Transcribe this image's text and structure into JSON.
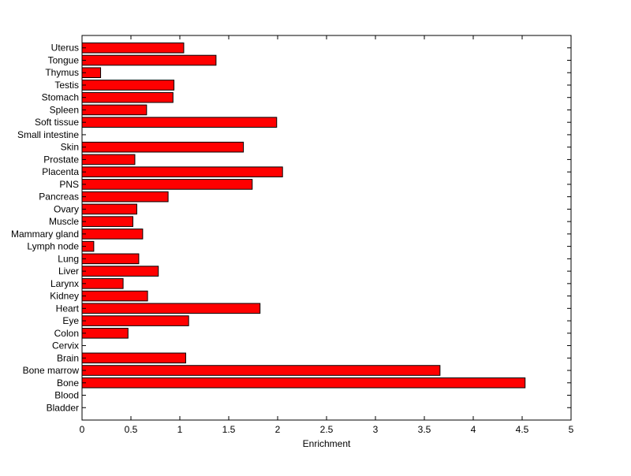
{
  "chart_data": {
    "type": "bar",
    "orientation": "horizontal",
    "title": "",
    "xlabel": "Enrichment",
    "ylabel": "",
    "xlim": [
      0,
      5
    ],
    "xticks": [
      0,
      0.5,
      1,
      1.5,
      2,
      2.5,
      3,
      3.5,
      4,
      4.5,
      5
    ],
    "xtick_labels": [
      "0",
      "0.5",
      "1",
      "1.5",
      "2",
      "2.5",
      "3",
      "3.5",
      "4",
      "4.5",
      "5"
    ],
    "grid": false,
    "legend": "none",
    "bar_color": "#ff0000",
    "bar_edge_color": "#000000",
    "categories": [
      "Bladder",
      "Blood",
      "Bone",
      "Bone marrow",
      "Brain",
      "Cervix",
      "Colon",
      "Eye",
      "Heart",
      "Kidney",
      "Larynx",
      "Liver",
      "Lung",
      "Lymph node",
      "Mammary gland",
      "Muscle",
      "Ovary",
      "Pancreas",
      "PNS",
      "Placenta",
      "Prostate",
      "Skin",
      "Small intestine",
      "Soft tissue",
      "Spleen",
      "Stomach",
      "Testis",
      "Thymus",
      "Tongue",
      "Uterus"
    ],
    "values": [
      0,
      0,
      4.53,
      3.66,
      1.06,
      0,
      0.47,
      1.09,
      1.82,
      0.67,
      0.42,
      0.78,
      0.58,
      0.12,
      0.62,
      0.52,
      0.56,
      0.88,
      1.74,
      2.05,
      0.54,
      1.65,
      0,
      1.99,
      0.66,
      0.93,
      0.94,
      0.19,
      1.37,
      1.04
    ]
  }
}
